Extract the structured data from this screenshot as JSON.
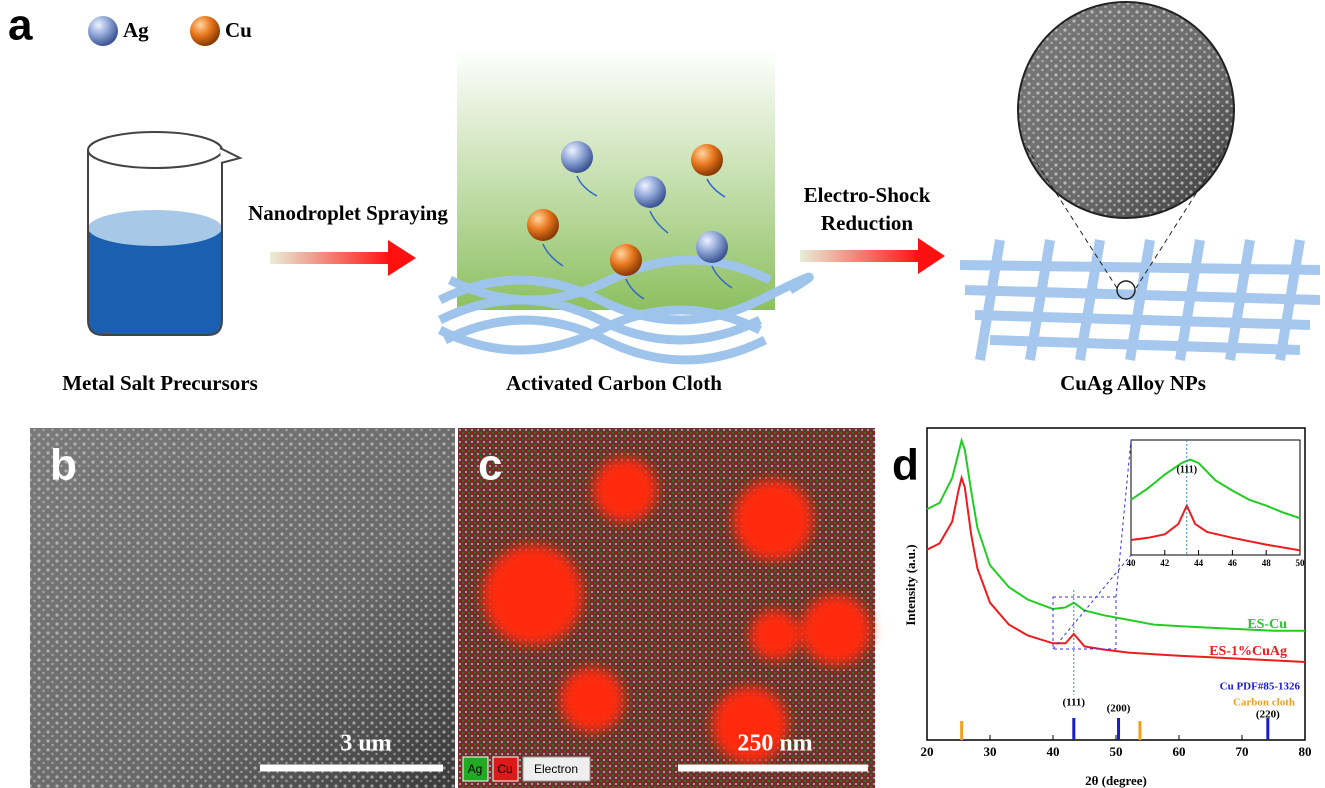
{
  "panel_a": {
    "label": "a",
    "legend": [
      "Ag",
      "Cu"
    ],
    "arrows": [
      [
        "Nanodroplet Spraying"
      ],
      [
        "Electro-Shock",
        "Reduction"
      ]
    ],
    "steps": [
      "Metal Salt Precursors",
      "Activated Carbon Cloth",
      "CuAg Alloy NPs"
    ]
  },
  "panel_b": {
    "label": "b",
    "scale_bar": "3 um"
  },
  "panel_c": {
    "label": "c",
    "scale_bar": "250 nm",
    "channels": [
      "Ag",
      "Cu",
      "Electron"
    ]
  },
  "chart_data": {
    "type": "line",
    "label": "d",
    "xlabel": "2θ (degree)",
    "ylabel": "Intensity (a.u.)",
    "xlim": [
      20,
      80
    ],
    "xticks": [
      20,
      30,
      40,
      50,
      60,
      70,
      80
    ],
    "ylim": [
      0,
      100
    ],
    "series": [
      {
        "name": "ES-Cu",
        "color": "#22cc22",
        "x": [
          20,
          22,
          24,
          25,
          25.5,
          26,
          27,
          28,
          30,
          33,
          36,
          40,
          42,
          43.3,
          45,
          48,
          52,
          56,
          60,
          65,
          70,
          75,
          80
        ],
        "y": [
          74,
          76,
          84,
          92,
          96,
          93,
          80,
          68,
          56,
          49,
          45,
          42,
          42.5,
          44,
          41.5,
          40,
          38.5,
          37,
          36.5,
          36,
          35.5,
          35,
          35
        ]
      },
      {
        "name": "ES-1%CuAg",
        "color": "#ee1c1c",
        "x": [
          20,
          22,
          24,
          25,
          25.5,
          26,
          27,
          28,
          30,
          33,
          36,
          40,
          42,
          43.3,
          45,
          48,
          52,
          56,
          60,
          65,
          70,
          75,
          80
        ],
        "y": [
          61,
          63,
          70,
          80,
          84,
          81,
          66,
          55,
          44,
          37,
          33.5,
          31,
          31,
          34,
          30,
          29,
          28,
          27.5,
          27,
          26.5,
          26,
          25.5,
          25
        ]
      }
    ],
    "references": [
      {
        "name": "Cu PDF#85-1326",
        "color": "#1a1ad6",
        "positions": [
          43.3,
          50.4,
          74.1
        ],
        "labels": [
          "(111)",
          "(200)",
          "(220)"
        ]
      },
      {
        "name": "Carbon cloth",
        "color": "#f0a020",
        "positions": [
          25.5,
          53.8
        ]
      }
    ],
    "inset": {
      "xlim": [
        40,
        50
      ],
      "xticks": [
        40,
        42,
        44,
        46,
        48,
        50
      ],
      "ylim": [
        0,
        100
      ],
      "marker": 43.3,
      "marker_label": "(111)",
      "series": [
        {
          "x": [
            40,
            41,
            42,
            43,
            43.5,
            44,
            45,
            46,
            47,
            48,
            49,
            50
          ],
          "y": [
            48,
            58,
            70,
            80,
            83,
            80,
            65,
            56,
            48,
            43,
            37,
            32
          ]
        },
        {
          "x": [
            40,
            41,
            42,
            42.8,
            43.3,
            43.8,
            44.5,
            46,
            48,
            50
          ],
          "y": [
            13,
            15,
            18,
            27,
            43,
            27,
            20,
            15,
            9,
            4
          ]
        }
      ]
    }
  }
}
